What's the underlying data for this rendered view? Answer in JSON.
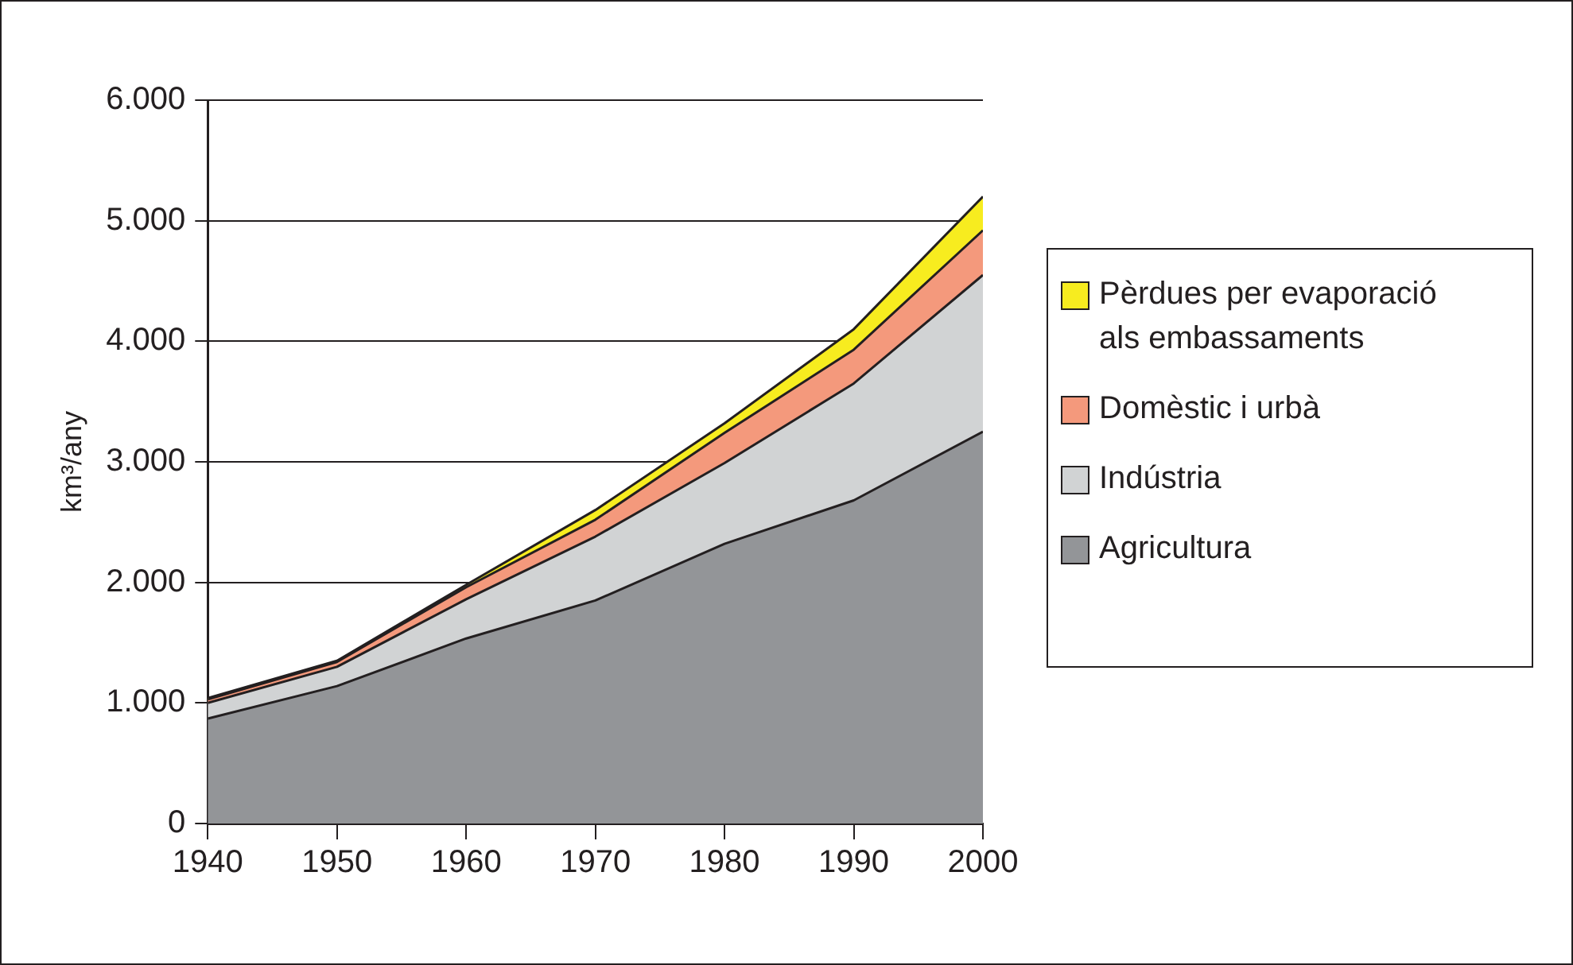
{
  "chart_data": {
    "type": "area",
    "stacked": true,
    "ylabel": "km³/any",
    "x": [
      1940,
      1950,
      1960,
      1970,
      1980,
      1990,
      2000
    ],
    "xlim": [
      1940,
      2000
    ],
    "xticks": [
      1940,
      1950,
      1960,
      1970,
      1980,
      1990,
      2000
    ],
    "ylim": [
      0,
      6000
    ],
    "yticks": [
      0,
      {
        "value": 1000,
        "label": "1.000"
      },
      {
        "value": 2000,
        "label": "2.000"
      },
      {
        "value": 3000,
        "label": "3.000"
      },
      {
        "value": 4000,
        "label": "4.000"
      },
      {
        "value": 5000,
        "label": "5.000"
      },
      {
        "value": 6000,
        "label": "6.000"
      }
    ],
    "grid": "y",
    "legend": "right",
    "series": [
      {
        "name": "Agricultura",
        "color": "#939598",
        "values": [
          870,
          1140,
          1535,
          1850,
          2320,
          2680,
          3250
        ]
      },
      {
        "name": "Indústria",
        "color": "#d1d3d4",
        "values": [
          130,
          160,
          325,
          530,
          670,
          970,
          1300
        ]
      },
      {
        "name": "Domèstic i urbà",
        "color": "#f4997c",
        "values": [
          30,
          40,
          100,
          140,
          250,
          280,
          370
        ]
      },
      {
        "name": "Pèrdues per evaporació als embassaments",
        "color": "#f7ec1f",
        "values": [
          10,
          10,
          20,
          80,
          80,
          170,
          280
        ]
      }
    ]
  }
}
